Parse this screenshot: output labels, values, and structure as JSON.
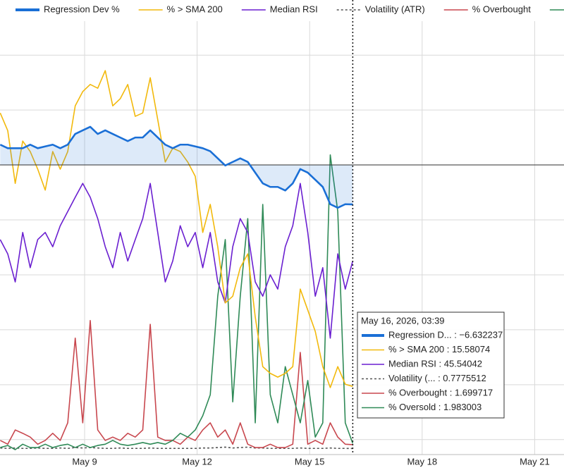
{
  "chart_data": {
    "type": "line",
    "legend": "top",
    "grid": true,
    "x": [
      6.75,
      6.95,
      7.15,
      7.35,
      7.55,
      7.75,
      7.95,
      8.15,
      8.35,
      8.55,
      8.75,
      8.95,
      9.15,
      9.35,
      9.55,
      9.75,
      9.95,
      10.15,
      10.35,
      10.55,
      10.75,
      10.95,
      11.15,
      11.35,
      11.55,
      11.75,
      11.95,
      12.15,
      12.35,
      12.55,
      12.75,
      12.95,
      13.15,
      13.35,
      13.55,
      13.75,
      13.95,
      14.15,
      14.35,
      14.55,
      14.75,
      14.95,
      15.15,
      15.35,
      15.55,
      15.75,
      15.95,
      16.15
    ],
    "xlim": [
      6.744,
      21.782
    ],
    "xticks": [
      {
        "value": 9,
        "label": "May 9"
      },
      {
        "value": 12,
        "label": "May 12"
      },
      {
        "value": 15,
        "label": "May 15"
      },
      {
        "value": 18,
        "label": "May 18"
      },
      {
        "value": 21,
        "label": "May 21"
      }
    ],
    "ylim": [
      -0.67,
      102.7
    ],
    "yticks": [
      2.9,
      16.0,
      29.1,
      42.2,
      55.3,
      68.4,
      81.5,
      94.6
    ],
    "y2lim": [
      -48.64,
      24.14
    ],
    "series": [
      {
        "name": "Regression Dev %",
        "color": "#1a6fd6",
        "axis": "y2",
        "area": true,
        "values": [
          3.4,
          2.8,
          2.8,
          2.8,
          3.4,
          2.8,
          3.1,
          3.4,
          2.8,
          3.4,
          5.2,
          5.8,
          6.4,
          5.2,
          5.8,
          5.2,
          4.6,
          4.0,
          4.6,
          4.6,
          5.8,
          4.6,
          3.4,
          2.8,
          3.4,
          3.4,
          3.1,
          2.8,
          2.3,
          1.1,
          -0.1,
          0.5,
          1.1,
          0.5,
          -1.3,
          -3.1,
          -3.7,
          -3.7,
          -4.3,
          -3.1,
          -0.7,
          -1.3,
          -2.5,
          -3.7,
          -6.6,
          -7.2,
          -6.6,
          -6.632237
        ]
      },
      {
        "name": "% > SMA 200",
        "color": "#f2b90c",
        "values": [
          80.8,
          76.6,
          64.0,
          74.1,
          71.6,
          67.4,
          62.4,
          71.6,
          67.4,
          71.6,
          82.5,
          85.9,
          87.6,
          86.7,
          90.9,
          82.5,
          84.2,
          87.6,
          80.0,
          80.8,
          89.2,
          79.2,
          69.1,
          72.4,
          71.6,
          69.1,
          65.7,
          52.3,
          59.0,
          48.9,
          35.5,
          37.1,
          43.9,
          47.2,
          32.1,
          20.3,
          18.7,
          17.8,
          18.7,
          20.3,
          38.8,
          33.8,
          28.7,
          20.3,
          15.3,
          20.3,
          16.1,
          15.58074
        ]
      },
      {
        "name": "Median RSI",
        "color": "#6a1fd0",
        "values": [
          50.6,
          47.2,
          40.5,
          52.3,
          43.9,
          50.6,
          52.3,
          48.9,
          53.9,
          57.3,
          60.7,
          64.0,
          60.7,
          55.6,
          48.9,
          43.9,
          52.3,
          45.5,
          50.6,
          55.6,
          64.0,
          52.3,
          40.5,
          45.5,
          53.9,
          48.9,
          52.3,
          43.9,
          52.3,
          40.5,
          35.5,
          48.9,
          55.6,
          52.3,
          40.5,
          37.1,
          42.2,
          38.8,
          48.9,
          53.9,
          64.0,
          52.3,
          37.1,
          43.9,
          27.1,
          47.2,
          38.8,
          45.54042
        ]
      },
      {
        "name": "Volatility (ATR)",
        "color": "#555555",
        "dash": true,
        "values": [
          0.9,
          0.8,
          0.9,
          0.8,
          0.8,
          0.9,
          0.8,
          0.8,
          0.9,
          0.8,
          1.0,
          0.9,
          1.0,
          0.9,
          0.8,
          0.8,
          0.9,
          0.8,
          0.8,
          0.8,
          0.9,
          0.8,
          0.8,
          0.8,
          0.8,
          0.8,
          0.8,
          0.9,
          0.9,
          1.0,
          1.1,
          0.9,
          1.0,
          1.1,
          0.9,
          0.9,
          0.8,
          0.8,
          0.8,
          0.8,
          0.9,
          0.8,
          0.8,
          0.8,
          0.9,
          0.8,
          0.8,
          0.7775512
        ]
      },
      {
        "name": "% Overbought",
        "color": "#c8474e",
        "values": [
          2.7,
          1.8,
          5.2,
          4.4,
          3.5,
          1.8,
          2.7,
          4.4,
          2.7,
          6.9,
          27.1,
          6.9,
          31.3,
          5.2,
          2.7,
          3.5,
          2.7,
          4.4,
          3.5,
          5.2,
          30.4,
          3.5,
          2.7,
          2.7,
          1.8,
          3.5,
          2.7,
          5.2,
          6.9,
          3.5,
          5.2,
          1.8,
          6.9,
          1.8,
          1.0,
          1.0,
          1.8,
          1.0,
          1.0,
          1.8,
          23.7,
          1.8,
          2.7,
          1.8,
          6.9,
          3.5,
          1.8,
          1.699717
        ]
      },
      {
        "name": "% Oversold",
        "color": "#2f8a57",
        "values": [
          1.0,
          1.5,
          0.5,
          1.8,
          1.0,
          1.0,
          1.8,
          1.0,
          1.5,
          1.8,
          1.0,
          1.8,
          1.0,
          1.5,
          1.8,
          2.7,
          1.8,
          1.5,
          1.8,
          2.2,
          1.8,
          2.2,
          1.8,
          2.7,
          4.4,
          3.5,
          5.2,
          8.6,
          13.6,
          37.1,
          50.6,
          11.9,
          37.1,
          55.6,
          6.9,
          59.0,
          13.6,
          6.9,
          20.3,
          13.6,
          6.9,
          17.0,
          3.5,
          6.9,
          70.8,
          57.3,
          6.9,
          1.983003
        ]
      }
    ],
    "tooltip": {
      "title": "May 16, 2026, 03:39",
      "entries": [
        "Regression D... : −6.632237",
        "% > SMA 200 : 15.58074",
        "Median RSI : 45.54042",
        "Volatility (... : 0.7775512",
        "% Overbought : 1.699717",
        "% Oversold : 1.983003"
      ]
    }
  }
}
